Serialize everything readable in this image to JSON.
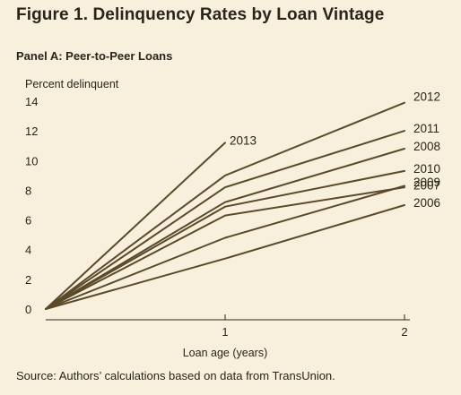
{
  "figure_title": "Figure 1. Delinquency Rates by Loan Vintage",
  "panel_title": "Panel A: Peer-to-Peer Loans",
  "source": "Source: Authors’ calculations based on data from TransUnion.",
  "colors": {
    "background": "#f8f0dd",
    "line": "#5a4a2a",
    "axis": "#2b2418"
  },
  "chart_data": {
    "type": "line",
    "title": "Delinquency Rates by Loan Vintage",
    "xlabel": "Loan age (years)",
    "ylabel": "Percent delinquent",
    "x_ticks": [
      1,
      2
    ],
    "y_ticks": [
      0,
      2,
      4,
      6,
      8,
      10,
      12,
      14
    ],
    "xlim": [
      0,
      2
    ],
    "ylim": [
      0,
      14
    ],
    "grid": false,
    "series": [
      {
        "name": "2013",
        "x": [
          0,
          1
        ],
        "y": [
          0,
          11.2
        ]
      },
      {
        "name": "2012",
        "x": [
          0,
          1,
          2
        ],
        "y": [
          0,
          9.0,
          13.9
        ]
      },
      {
        "name": "2011",
        "x": [
          0,
          1,
          2
        ],
        "y": [
          0,
          8.2,
          12.0
        ]
      },
      {
        "name": "2008",
        "x": [
          0,
          1,
          2
        ],
        "y": [
          0,
          7.2,
          10.8
        ]
      },
      {
        "name": "2010",
        "x": [
          0,
          1,
          2
        ],
        "y": [
          0,
          6.9,
          9.3
        ]
      },
      {
        "name": "2009",
        "x": [
          0,
          1,
          2
        ],
        "y": [
          0,
          6.3,
          8.2
        ]
      },
      {
        "name": "2007",
        "x": [
          0,
          1,
          2
        ],
        "y": [
          0,
          4.8,
          8.3
        ]
      },
      {
        "name": "2006",
        "x": [
          0,
          1,
          2
        ],
        "y": [
          0,
          3.4,
          7.0
        ]
      }
    ]
  }
}
